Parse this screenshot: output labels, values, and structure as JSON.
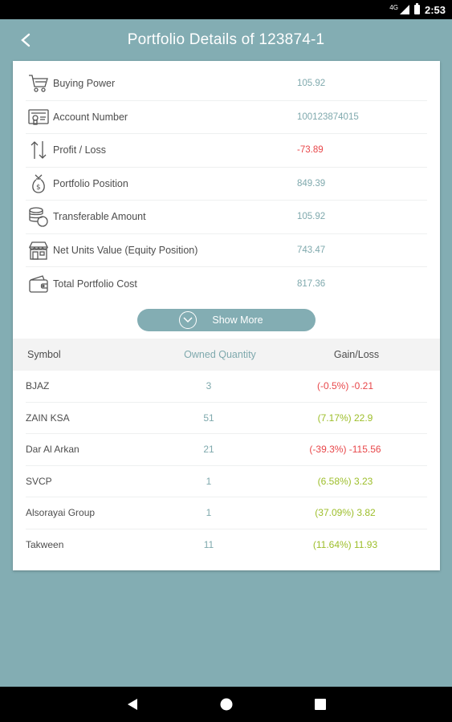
{
  "status_bar": {
    "network": "4G",
    "time": "2:53"
  },
  "header": {
    "title": "Portfolio Details of 123874-1"
  },
  "summary": [
    {
      "icon": "cart-icon",
      "label": "Buying Power",
      "value": "105.92",
      "negative": false
    },
    {
      "icon": "id-card-icon",
      "label": "Account Number",
      "value": "100123874015",
      "negative": false
    },
    {
      "icon": "up-down-arrows-icon",
      "label": "Profit / Loss",
      "value": "-73.89",
      "negative": true
    },
    {
      "icon": "money-bag-icon",
      "label": "Portfolio Position",
      "value": "849.39",
      "negative": false
    },
    {
      "icon": "coins-stack-icon",
      "label": "Transferable Amount",
      "value": "105.92",
      "negative": false
    },
    {
      "icon": "storefront-icon",
      "label": "Net Units Value (Equity Position)",
      "value": "743.47",
      "negative": false
    },
    {
      "icon": "wallet-icon",
      "label": "Total Portfolio Cost",
      "value": "817.36",
      "negative": false
    }
  ],
  "show_more_label": "Show More",
  "table": {
    "headers": {
      "symbol": "Symbol",
      "quantity": "Owned Quantity",
      "gain": "Gain/Loss"
    },
    "rows": [
      {
        "symbol": "BJAZ",
        "quantity": "3",
        "gain": "(-0.5%) -0.21",
        "positive": false
      },
      {
        "symbol": "ZAIN KSA",
        "quantity": "51",
        "gain": "(7.17%) 22.9",
        "positive": true
      },
      {
        "symbol": "Dar Al Arkan",
        "quantity": "21",
        "gain": "(-39.3%) -115.56",
        "positive": false
      },
      {
        "symbol": "SVCP",
        "quantity": "1",
        "gain": "(6.58%) 3.23",
        "positive": true
      },
      {
        "symbol": "Alsorayai Group",
        "quantity": "1",
        "gain": "(37.09%) 3.82",
        "positive": true
      },
      {
        "symbol": "Takween",
        "quantity": "11",
        "gain": "(11.64%) 11.93",
        "positive": true
      }
    ]
  },
  "colors": {
    "background": "#83adb3",
    "value_teal": "#7fa9ad",
    "negative_red": "#e8474a",
    "positive_green": "#9dbe2a"
  }
}
